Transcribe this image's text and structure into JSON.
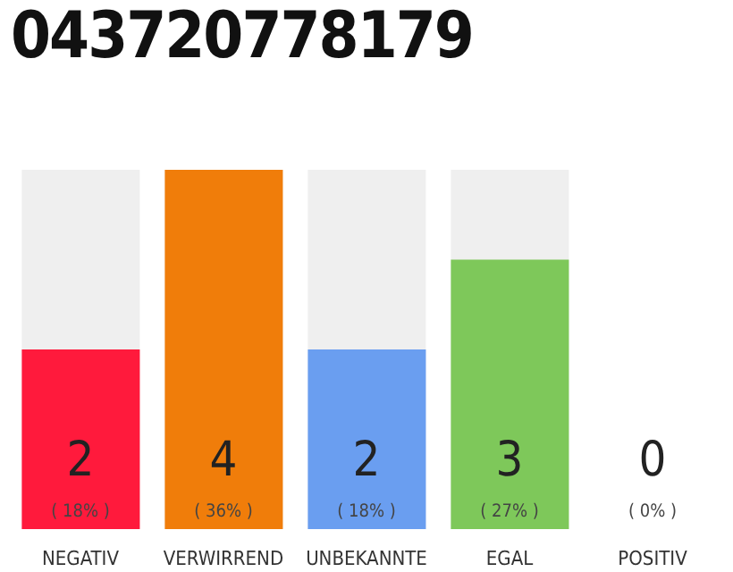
{
  "chart_data": {
    "type": "bar",
    "title": "043720778179",
    "categories": [
      "NEGATIV",
      "VERWIRREND",
      "UNBEKANNTE",
      "EGAL",
      "POSITIV"
    ],
    "values": [
      2,
      4,
      2,
      3,
      0
    ],
    "colors": [
      "#ff1a3c",
      "#f07d0a",
      "#6a9ef0",
      "#7ec85a",
      "#d0d0d0"
    ],
    "value_labels": [
      "2\n( 18% )",
      "4\n( 36% )",
      "2\n( 18% )",
      "3\n( 27% )",
      "0\n( 0% )"
    ],
    "tick_labels": "x"
  }
}
